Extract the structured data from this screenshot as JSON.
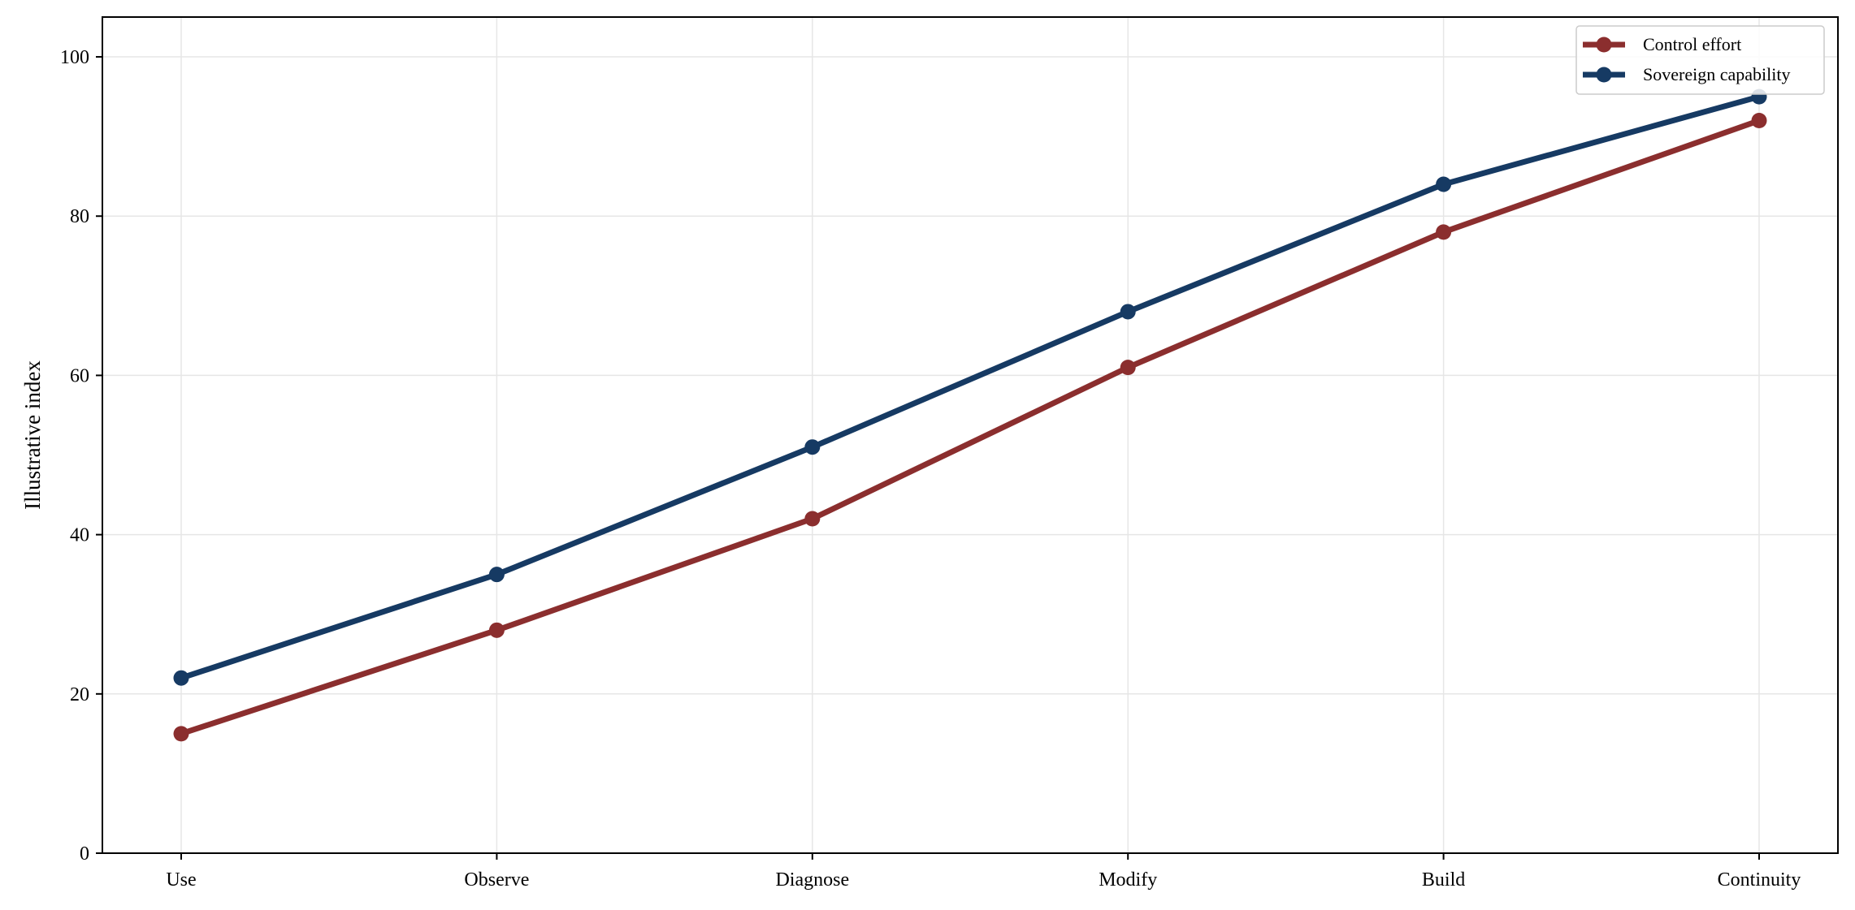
{
  "chart_data": {
    "type": "line",
    "categories": [
      "Use",
      "Observe",
      "Diagnose",
      "Modify",
      "Build",
      "Continuity"
    ],
    "series": [
      {
        "name": "Control effort",
        "color": "#8b2e2e",
        "values": [
          15,
          28,
          42,
          61,
          78,
          92
        ]
      },
      {
        "name": "Sovereign capability",
        "color": "#163a63",
        "values": [
          22,
          35,
          51,
          68,
          84,
          95
        ]
      }
    ],
    "xlabel": "",
    "ylabel": "Illustrative index",
    "ylim": [
      0,
      105
    ],
    "yticks": [
      0,
      20,
      40,
      60,
      80,
      100
    ],
    "grid": true,
    "legend_position": "upper right"
  }
}
